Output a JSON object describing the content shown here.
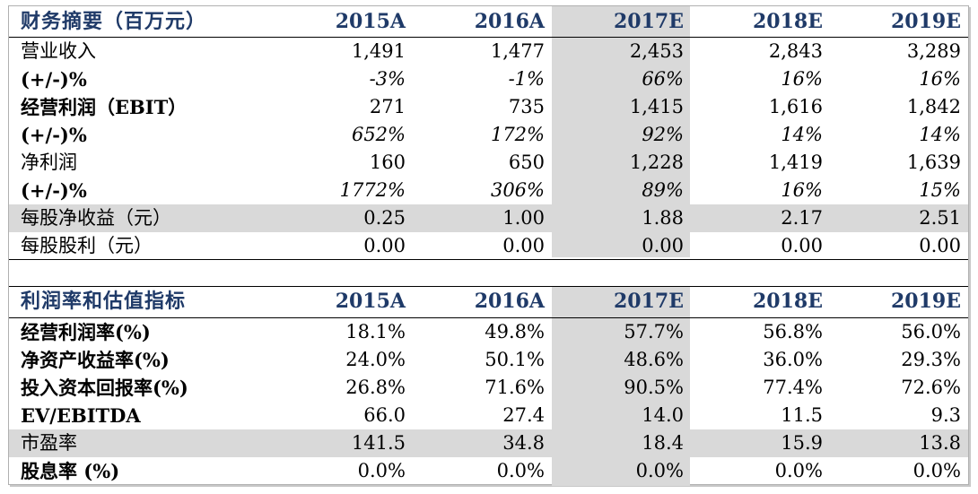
{
  "table1": {
    "header": {
      "title": "财务摘要（百万元）",
      "cols": [
        "2015A",
        "2016A",
        "2017E",
        "2018E",
        "2019E"
      ]
    },
    "rows": [
      {
        "label": "营业收入",
        "v": [
          "1,491",
          "1,477",
          "2,453",
          "2,843",
          "3,289"
        ]
      },
      {
        "label": "(+/-)%",
        "v": [
          "-3%",
          "-1%",
          "66%",
          "16%",
          "16%"
        ]
      },
      {
        "label": "经营利润（EBIT）",
        "v": [
          "271",
          "735",
          "1,415",
          "1,616",
          "1,842"
        ]
      },
      {
        "label": "(+/-)%",
        "v": [
          "652%",
          "172%",
          "92%",
          "14%",
          "14%"
        ]
      },
      {
        "label": "净利润",
        "v": [
          "160",
          "650",
          "1,228",
          "1,419",
          "1,639"
        ]
      },
      {
        "label": "(+/-)%",
        "v": [
          "1772%",
          "306%",
          "89%",
          "16%",
          "15%"
        ]
      },
      {
        "label": "每股净收益（元）",
        "v": [
          "0.25",
          "1.00",
          "1.88",
          "2.17",
          "2.51"
        ]
      },
      {
        "label": "每股股利（元）",
        "v": [
          "0.00",
          "0.00",
          "0.00",
          "0.00",
          "0.00"
        ]
      }
    ]
  },
  "table2": {
    "header": {
      "title": "利润率和估值指标",
      "cols": [
        "2015A",
        "2016A",
        "2017E",
        "2018E",
        "2019E"
      ]
    },
    "rows": [
      {
        "label": "经营利润率(%)",
        "v": [
          "18.1%",
          "49.8%",
          "57.7%",
          "56.8%",
          "56.0%"
        ]
      },
      {
        "label": "净资产收益率(%)",
        "v": [
          "24.0%",
          "50.1%",
          "48.6%",
          "36.0%",
          "29.3%"
        ]
      },
      {
        "label": "投入资本回报率(%)",
        "v": [
          "26.8%",
          "71.6%",
          "90.5%",
          "77.4%",
          "72.6%"
        ]
      },
      {
        "label": "EV/EBITDA",
        "v": [
          "66.0",
          "27.4",
          "14.0",
          "11.5",
          "9.3"
        ]
      },
      {
        "label": "市盈率",
        "v": [
          "141.5",
          "34.8",
          "18.4",
          "15.9",
          "13.8"
        ]
      },
      {
        "label": "股息率 (%)",
        "v": [
          "0.0%",
          "0.0%",
          "0.0%",
          "0.0%",
          "0.0%"
        ]
      }
    ]
  }
}
